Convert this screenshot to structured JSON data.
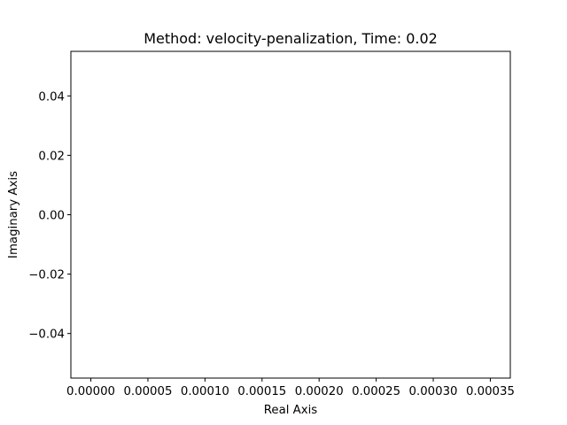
{
  "chart_data": {
    "type": "scatter",
    "title": "Method: velocity-penalization, Time: 0.02",
    "xlabel": "Real Axis",
    "ylabel": "Imaginary Axis",
    "xlim": [
      -1.75e-05,
      0.0003675
    ],
    "ylim": [
      -0.055,
      0.055
    ],
    "xticks": [
      0.0,
      5e-05,
      0.0001,
      0.00015,
      0.0002,
      0.00025,
      0.0003,
      0.00035
    ],
    "xtick_labels": [
      "0.00000",
      "0.00005",
      "0.00010",
      "0.00015",
      "0.00020",
      "0.00025",
      "0.00030",
      "0.00035"
    ],
    "yticks": [
      -0.04,
      -0.02,
      0.0,
      0.02,
      0.04
    ],
    "ytick_labels": [
      "−0.04",
      "−0.02",
      "0.00",
      "0.02",
      "0.04"
    ],
    "series": [
      {
        "x": [],
        "y": []
      }
    ],
    "grid": false,
    "colors": {
      "axes": "#000000",
      "background": "#ffffff"
    }
  }
}
